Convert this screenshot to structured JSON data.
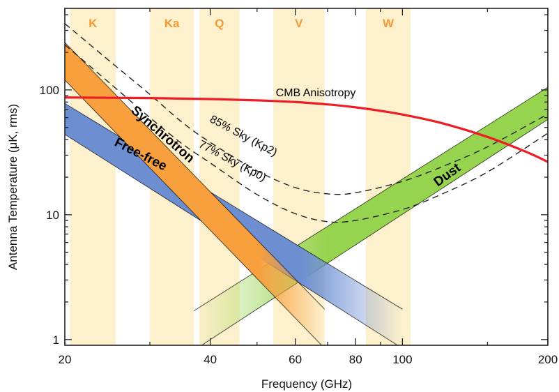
{
  "chart_data": {
    "type": "line",
    "xlabel": "Frequency (GHz)",
    "ylabel": "Antenna Temperature (μK, rms)",
    "x_scale": "log",
    "y_scale": "log",
    "xlim": [
      20,
      200
    ],
    "ylim": [
      0.9,
      450
    ],
    "x_ticks": [
      {
        "value": 20,
        "label": "20"
      },
      {
        "value": 40,
        "label": "40"
      },
      {
        "value": 60,
        "label": "60"
      },
      {
        "value": 80,
        "label": "80"
      },
      {
        "value": 100,
        "label": "100"
      },
      {
        "value": 200,
        "label": "200"
      }
    ],
    "y_ticks": [
      {
        "value": 1,
        "label": "1"
      },
      {
        "value": 10,
        "label": "10"
      },
      {
        "value": 100,
        "label": "100"
      }
    ],
    "frequency_bands": [
      {
        "name": "K",
        "range": [
          20.5,
          25.5
        ]
      },
      {
        "name": "Ka",
        "range": [
          30,
          37
        ]
      },
      {
        "name": "Q",
        "range": [
          38,
          46
        ]
      },
      {
        "name": "V",
        "range": [
          54,
          69
        ]
      },
      {
        "name": "W",
        "range": [
          84,
          104
        ]
      }
    ],
    "band_color": "#fdf0cc",
    "cmb": {
      "label": "CMB Anisotropy",
      "color": "#ee1c25",
      "x": [
        20,
        30,
        40,
        50,
        60,
        70,
        80,
        90,
        100,
        120,
        150,
        180,
        200
      ],
      "y": [
        87,
        86,
        84.5,
        82.5,
        80,
        76.5,
        72.5,
        68,
        63.5,
        54.5,
        42,
        32,
        26.5
      ]
    },
    "sky_curves": [
      {
        "label": "85% Sky (Kp2)",
        "x": [
          20,
          25,
          30,
          35,
          40,
          50,
          60,
          70,
          80,
          100,
          120,
          150,
          200
        ],
        "y": [
          340,
          165,
          92,
          55,
          38,
          22.5,
          16.5,
          14.7,
          15,
          18.5,
          24,
          35,
          64
        ]
      },
      {
        "label": "77% Sky (Kp0)",
        "x": [
          20,
          25,
          30,
          35,
          40,
          50,
          60,
          70,
          80,
          100,
          120,
          150,
          200
        ],
        "y": [
          230,
          110,
          60,
          37,
          26,
          14.5,
          10.2,
          8.8,
          9,
          11,
          14.5,
          22,
          45
        ]
      }
    ],
    "components": [
      {
        "name": "Synchrotron",
        "color": "#f7a03d",
        "x": [
          20,
          69
        ],
        "upper": [
          240,
          1.75
        ],
        "lower": [
          120,
          0.85
        ]
      },
      {
        "name": "Free-free",
        "color": "#6d8fd2",
        "x": [
          20,
          100
        ],
        "upper": [
          78,
          1.75
        ],
        "lower": [
          44,
          0.85
        ]
      },
      {
        "name": "Dust",
        "color": "#96d34e",
        "x": [
          37,
          200
        ],
        "upper": [
          1.7,
          105
        ],
        "lower": [
          0.82,
          58
        ]
      }
    ]
  }
}
